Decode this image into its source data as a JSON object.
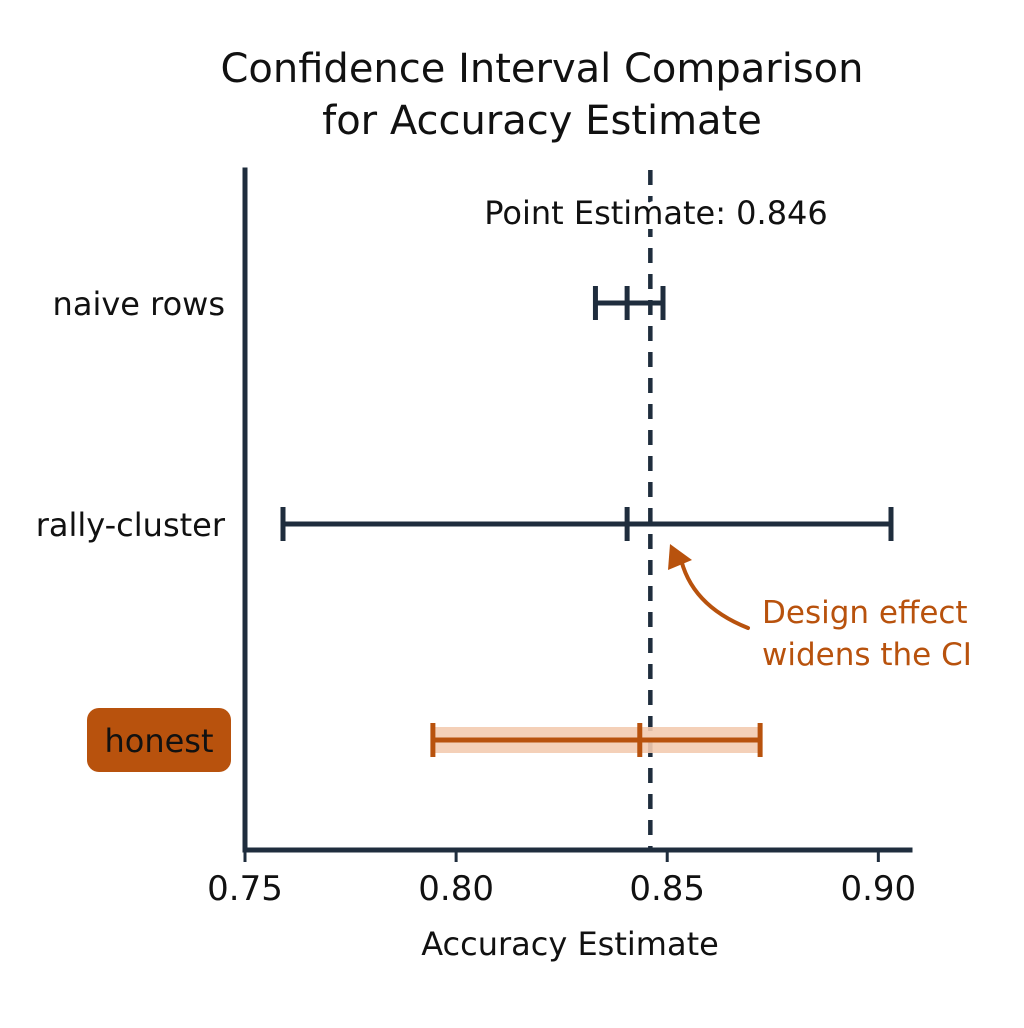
{
  "chart_data": {
    "type": "errorbar",
    "title": [
      "Confidence Interval Comparison",
      "for Accuracy Estimate"
    ],
    "xlabel": "Accuracy Estimate",
    "ylabel": "",
    "xlim": [
      0.75,
      0.9075
    ],
    "xticks": [
      0.75,
      0.8,
      0.85,
      0.9
    ],
    "xtick_labels": [
      "0.75",
      "0.80",
      "0.85",
      "0.90"
    ],
    "grid": false,
    "reference_line": {
      "value": 0.846,
      "label": "Point Estimate: 0.846",
      "style": "dashed"
    },
    "series": [
      {
        "category": "naive rows",
        "estimate": 0.8405,
        "lower": 0.833,
        "upper": 0.849,
        "highlight": false
      },
      {
        "category": "rally-cluster",
        "estimate": 0.8405,
        "lower": 0.759,
        "upper": 0.903,
        "highlight": false
      },
      {
        "category": "honest",
        "estimate": 0.8435,
        "lower": 0.7945,
        "upper": 0.872,
        "highlight": true
      }
    ],
    "annotation": {
      "text": [
        "Design effect",
        "widens the CI"
      ],
      "target_category": "rally-cluster"
    }
  },
  "colors": {
    "primary": "#1f2d3d",
    "highlight": "#b8520d",
    "highlight_band": "#f3cbb0",
    "label_badge_text": "#ffffff",
    "text": "#111111"
  }
}
